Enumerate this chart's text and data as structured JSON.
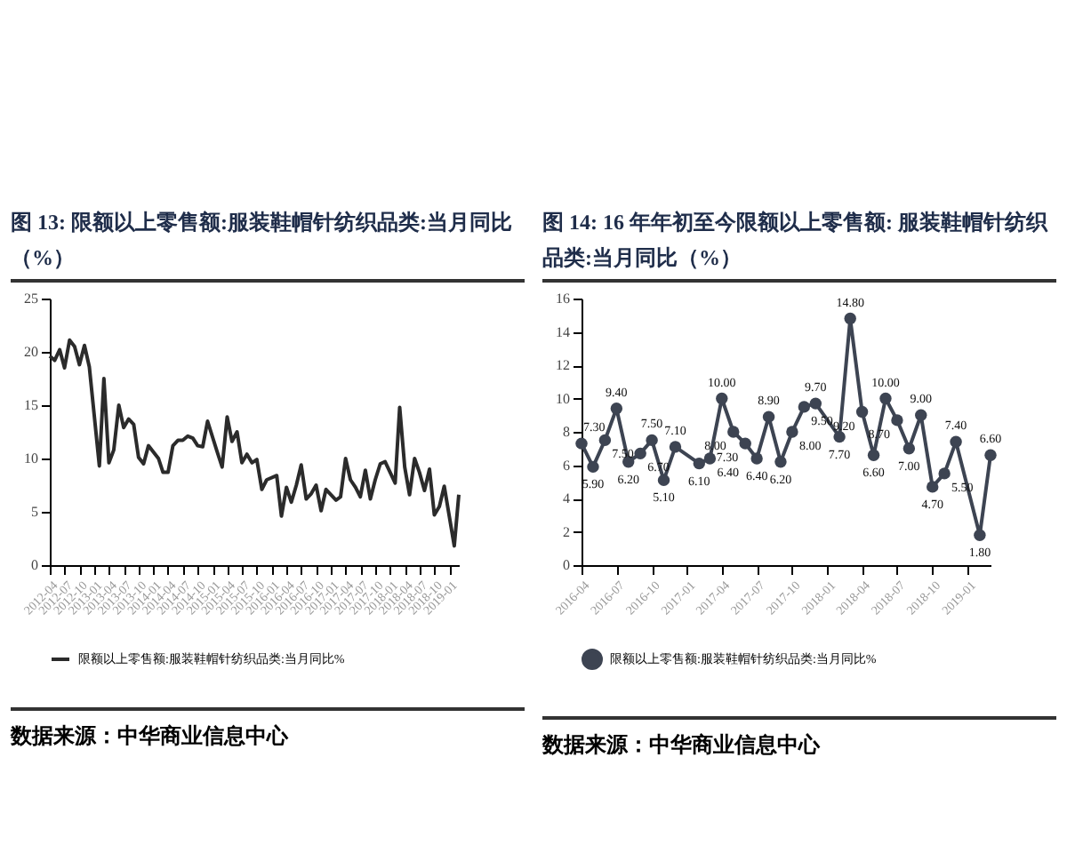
{
  "chart_data": [
    {
      "type": "line",
      "title": "图 13: 限额以上零售额:服装鞋帽针纺织品类:当月同比（%）",
      "x": [
        "2012-04",
        "2012-05",
        "2012-06",
        "2012-07",
        "2012-08",
        "2012-09",
        "2012-10",
        "2012-11",
        "2012-12",
        "2013-02",
        "2013-03",
        "2013-04",
        "2013-05",
        "2013-06",
        "2013-07",
        "2013-08",
        "2013-09",
        "2013-10",
        "2013-11",
        "2013-12",
        "2014-02",
        "2014-03",
        "2014-04",
        "2014-05",
        "2014-06",
        "2014-07",
        "2014-08",
        "2014-09",
        "2014-10",
        "2014-11",
        "2014-12",
        "2015-02",
        "2015-03",
        "2015-04",
        "2015-05",
        "2015-06",
        "2015-07",
        "2015-08",
        "2015-09",
        "2015-10",
        "2015-11",
        "2015-12",
        "2016-02",
        "2016-03",
        "2016-04",
        "2016-05",
        "2016-06",
        "2016-07",
        "2016-08",
        "2016-09",
        "2016-10",
        "2016-11",
        "2016-12",
        "2017-02",
        "2017-03",
        "2017-04",
        "2017-05",
        "2017-06",
        "2017-07",
        "2017-08",
        "2017-09",
        "2017-10",
        "2017-11",
        "2017-12",
        "2018-02",
        "2018-03",
        "2018-04",
        "2018-05",
        "2018-06",
        "2018-07",
        "2018-08",
        "2018-09",
        "2018-10",
        "2018-11",
        "2018-12",
        "2019-02",
        "2019-03"
      ],
      "series": [
        {
          "name": "限额以上零售额:服装鞋帽针纺织品类:当月同比%",
          "color": "#2b2b2b",
          "values": [
            19.6,
            19.2,
            20.2,
            18.5,
            21.1,
            20.5,
            18.8,
            20.6,
            18.6,
            9.3,
            17.5,
            9.6,
            10.8,
            15.0,
            12.9,
            13.7,
            13.2,
            10.1,
            9.5,
            11.2,
            10.0,
            8.7,
            8.7,
            11.2,
            11.7,
            11.7,
            12.1,
            11.9,
            11.2,
            11.1,
            13.5,
            10.5,
            9.2,
            13.9,
            11.6,
            12.5,
            9.6,
            10.4,
            9.6,
            9.9,
            7.1,
            8.0,
            8.4,
            4.6,
            7.3,
            5.9,
            7.5,
            9.4,
            6.2,
            6.7,
            7.5,
            5.1,
            7.1,
            6.1,
            6.4,
            10.0,
            8.0,
            7.3,
            6.4,
            8.9,
            6.2,
            8.0,
            9.5,
            9.7,
            7.7,
            14.8,
            9.2,
            6.6,
            10.0,
            8.7,
            7.0,
            9.0,
            4.7,
            5.5,
            7.4,
            1.8,
            6.6
          ]
        }
      ],
      "xlim": [
        "2012-04",
        "2019-03"
      ],
      "xticks": [
        "2012-04",
        "2012-07",
        "2012-10",
        "2013-01",
        "2013-04",
        "2013-07",
        "2013-10",
        "2014-01",
        "2014-04",
        "2014-07",
        "2014-10",
        "2015-01",
        "2015-04",
        "2015-07",
        "2015-10",
        "2016-01",
        "2016-04",
        "2016-07",
        "2016-10",
        "2017-01",
        "2017-04",
        "2017-07",
        "2017-10",
        "2018-01",
        "2018-04",
        "2018-07",
        "2018-10",
        "2019-01"
      ],
      "ylim": [
        0,
        25
      ],
      "yticks": [
        0,
        5,
        10,
        15,
        20,
        25
      ],
      "legend": "bottom",
      "marker": "none",
      "annotations": [
        "数据来源：中华商业信息中心"
      ]
    },
    {
      "type": "line",
      "title": "图 14: 16 年年初至今限额以上零售额: 服装鞋帽针纺织品类:当月同比（%）",
      "x": [
        "2016-04",
        "2016-05",
        "2016-06",
        "2016-07",
        "2016-08",
        "2016-09",
        "2016-10",
        "2016-11",
        "2016-12",
        "2017-02",
        "2017-03",
        "2017-04",
        "2017-05",
        "2017-06",
        "2017-07",
        "2017-08",
        "2017-09",
        "2017-10",
        "2017-11",
        "2017-12",
        "2018-02",
        "2018-03",
        "2018-04",
        "2018-05",
        "2018-06",
        "2018-07",
        "2018-08",
        "2018-09",
        "2018-10",
        "2018-11",
        "2018-12",
        "2019-02",
        "2019-03"
      ],
      "series": [
        {
          "name": "限额以上零售额:服装鞋帽针纺织品类:当月同比%",
          "color": "#3d4452",
          "values": [
            7.3,
            5.9,
            7.5,
            9.4,
            6.2,
            6.7,
            7.5,
            5.1,
            7.1,
            6.1,
            6.4,
            10.0,
            8.0,
            7.3,
            6.4,
            8.9,
            6.2,
            8.0,
            9.5,
            9.7,
            7.7,
            14.8,
            9.2,
            6.6,
            10.0,
            8.7,
            7.0,
            9.0,
            4.7,
            5.5,
            7.4,
            1.8,
            6.6
          ],
          "value_labels": [
            "7.30",
            "5.90",
            "7.50",
            "9.40",
            "6.20",
            "6.70",
            "7.50",
            "5.10",
            "7.10",
            "6.10",
            "6.40",
            "10.00",
            "8.00",
            "7.30",
            "6.40",
            "8.90",
            "6.20",
            "8.00",
            "9.50",
            "9.70",
            "7.70",
            "14.80",
            "9.20",
            "6.60",
            "10.00",
            "8.70",
            "7.00",
            "9.00",
            "4.70",
            "5.50",
            "7.40",
            "1.80",
            "6.60"
          ]
        }
      ],
      "xlim": [
        "2016-04",
        "2019-03"
      ],
      "xticks": [
        "2016-04",
        "2016-07",
        "2016-10",
        "2017-01",
        "2017-04",
        "2017-07",
        "2017-10",
        "2018-01",
        "2018-04",
        "2018-07",
        "2018-10",
        "2019-01"
      ],
      "ylim": [
        0,
        16
      ],
      "yticks": [
        0,
        2,
        4,
        6,
        8,
        10,
        12,
        14,
        16
      ],
      "legend": "bottom",
      "marker": "circle",
      "annotations": [
        "数据来源：中华商业信息中心"
      ]
    }
  ]
}
